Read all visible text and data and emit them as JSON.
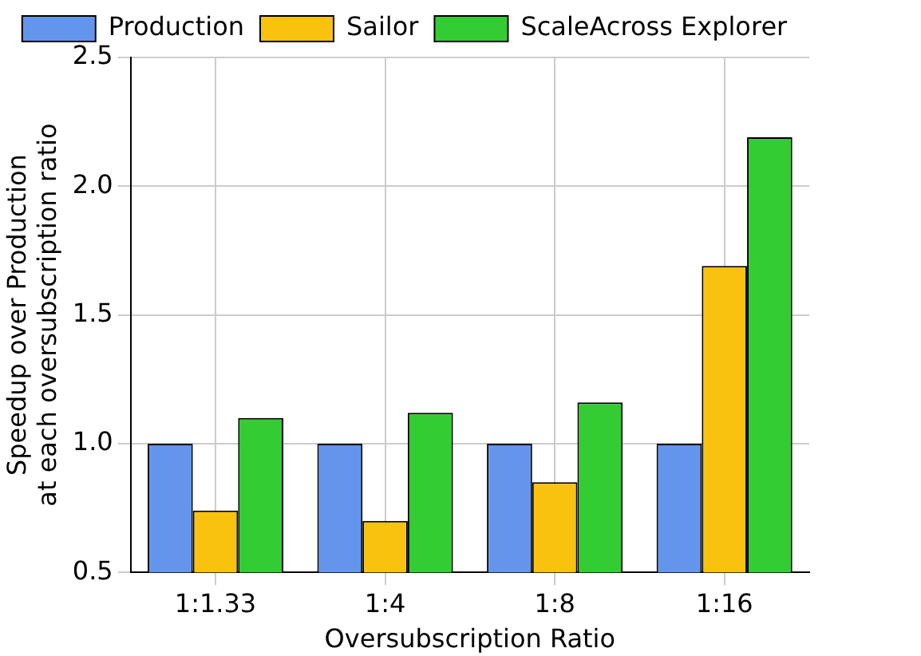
{
  "chart_data": {
    "type": "bar",
    "xlabel": "Oversubscription Ratio",
    "ylabel": "Speedup over Production\nat each oversubscription ratio",
    "categories": [
      "1:1.33",
      "1:4",
      "1:8",
      "1:16"
    ],
    "series": [
      {
        "name": "Production",
        "color": "#6495ed",
        "values": [
          1.0,
          1.0,
          1.0,
          1.0
        ]
      },
      {
        "name": "Sailor",
        "color": "#f8c20f",
        "values": [
          0.74,
          0.7,
          0.85,
          1.69
        ]
      },
      {
        "name": "ScaleAcross Explorer",
        "color": "#33cc33",
        "values": [
          1.1,
          1.12,
          1.16,
          2.19
        ]
      }
    ],
    "ylim": [
      0.5,
      2.5
    ],
    "yticks": [
      0.5,
      {
        "value": 1,
        "label": "1.0"
      },
      1.5,
      {
        "value": 2,
        "label": "2.0"
      },
      2.5
    ],
    "grid": true,
    "legend": "top"
  }
}
